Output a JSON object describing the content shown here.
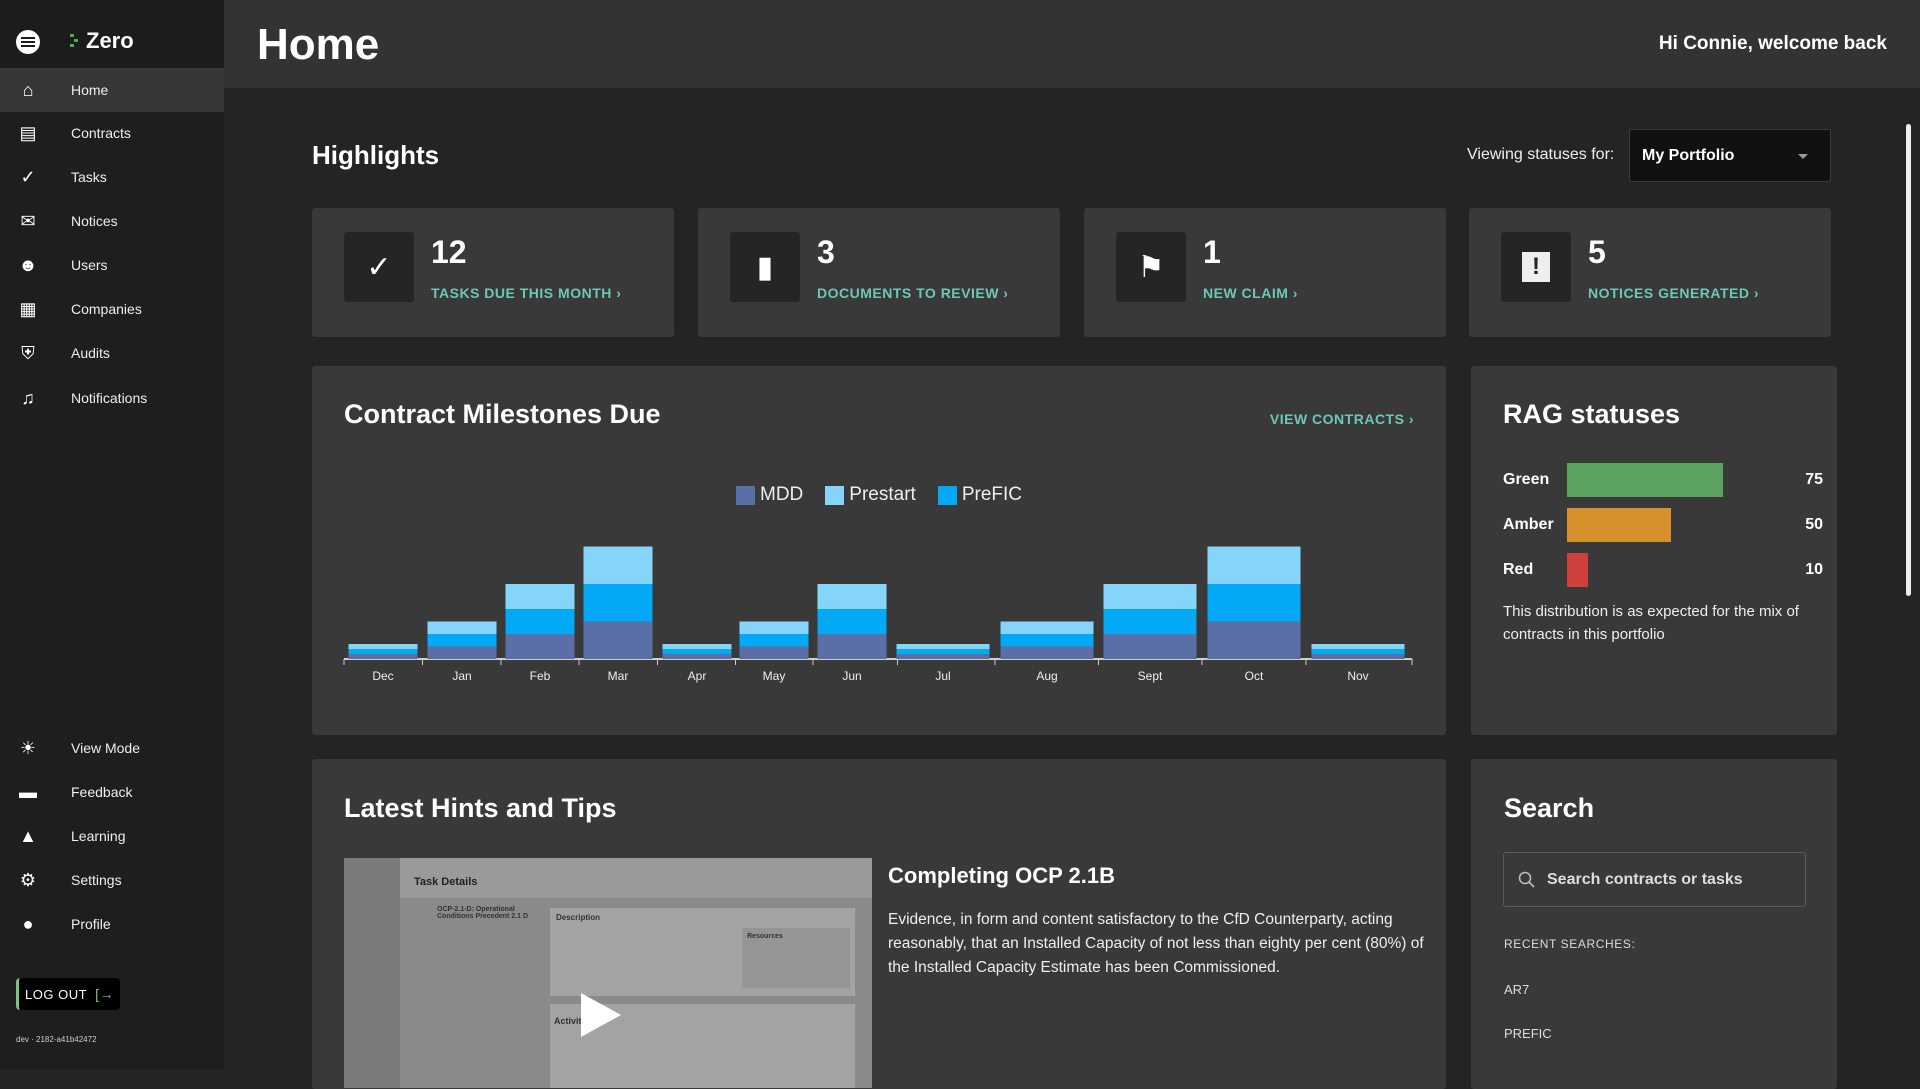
{
  "app": {
    "name": "Zero",
    "version": "dev · 2182-a41b42472"
  },
  "sidebar": {
    "items": [
      {
        "label": "Home",
        "icon": "home-icon",
        "active": true
      },
      {
        "label": "Contracts",
        "icon": "clipboard-icon"
      },
      {
        "label": "Tasks",
        "icon": "check-circle-icon"
      },
      {
        "label": "Notices",
        "icon": "mail-icon"
      },
      {
        "label": "Users",
        "icon": "users-icon"
      },
      {
        "label": "Companies",
        "icon": "building-icon"
      },
      {
        "label": "Audits",
        "icon": "shield-user-icon"
      },
      {
        "label": "Notifications",
        "icon": "bell-icon"
      }
    ],
    "bottom_items": [
      {
        "label": "View Mode",
        "icon": "sun-icon"
      },
      {
        "label": "Feedback",
        "icon": "chat-icon"
      },
      {
        "label": "Learning",
        "icon": "graduation-cap-icon"
      },
      {
        "label": "Settings",
        "icon": "gear-icon"
      },
      {
        "label": "Profile",
        "icon": "user-circle-icon"
      }
    ],
    "logout_label": "LOG OUT"
  },
  "header": {
    "title": "Home",
    "welcome": "Hi Connie, welcome back"
  },
  "highlights": {
    "title": "Highlights",
    "viewing_label": "Viewing statuses for:",
    "portfolio": "My Portfolio",
    "cards": [
      {
        "count": "12",
        "label": "TASKS DUE THIS MONTH ›",
        "icon": "check-circle-icon"
      },
      {
        "count": "3",
        "label": "DOCUMENTS TO REVIEW ›",
        "icon": "document-icon"
      },
      {
        "count": "1",
        "label": "NEW CLAIM ›",
        "icon": "flag-icon"
      },
      {
        "count": "5",
        "label": "NOTICES GENERATED ›",
        "icon": "clipboard-alert-icon"
      }
    ]
  },
  "milestones": {
    "title": "Contract Milestones Due",
    "view_link": "VIEW CONTRACTS ›"
  },
  "chart_data": {
    "type": "bar",
    "stacked": true,
    "legend_position": "top",
    "grid": false,
    "categories": [
      "Dec",
      "Jan",
      "Feb",
      "Mar",
      "Apr",
      "May",
      "Jun",
      "Jul",
      "Aug",
      "Sept",
      "Oct",
      "Nov"
    ],
    "series": [
      {
        "name": "MDD",
        "color": "#5a6ea8",
        "values": [
          2,
          5,
          10,
          15,
          2,
          5,
          10,
          2,
          5,
          10,
          15,
          2
        ]
      },
      {
        "name": "PreFIC",
        "color": "#03a9f4",
        "values": [
          2,
          5,
          10,
          15,
          2,
          5,
          10,
          2,
          5,
          10,
          15,
          2
        ]
      },
      {
        "name": "Prestart",
        "color": "#85d4fa",
        "values": [
          2,
          5,
          10,
          15,
          2,
          5,
          10,
          2,
          5,
          10,
          15,
          2
        ]
      }
    ],
    "legend_order": [
      "MDD",
      "Prestart",
      "PreFIC"
    ]
  },
  "rag": {
    "title": "RAG statuses",
    "rows": [
      {
        "label": "Green",
        "value": 75,
        "color": "#5ba361"
      },
      {
        "label": "Amber",
        "value": 50,
        "color": "#d6902c"
      },
      {
        "label": "Red",
        "value": 10,
        "color": "#d0403a"
      }
    ],
    "note": "This distribution is as expected for the mix of contracts in this portfolio"
  },
  "hints": {
    "title": "Latest Hints and Tips",
    "video_title": "Completing OCP 2.1B",
    "body": "Evidence, in form and content satisfactory to the CfD Counterparty, acting reasonably, that an Installed Capacity of not less than eighty per cent (80%) of the Installed Capacity Estimate has been Commissioned.",
    "thumb": {
      "heading": "Task Details",
      "task": "OCP-2.1-D: Operational Conditions Precedent 2.1 D",
      "desc": "Description",
      "resources": "Resources",
      "activity": "Activities"
    }
  },
  "search": {
    "title": "Search",
    "placeholder": "Search contracts or tasks",
    "recent_label": "RECENT SEARCHES:",
    "recent": [
      "AR7",
      "PREFIC"
    ]
  }
}
